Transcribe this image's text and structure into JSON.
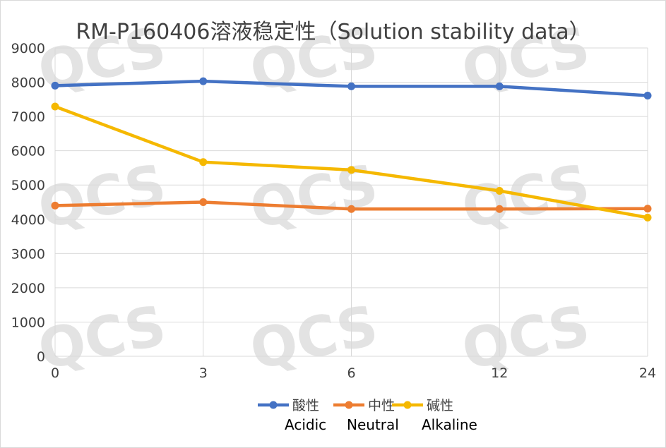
{
  "watermark": "QCS",
  "chart_data": {
    "type": "line",
    "title": "RM-P160406溶液稳定性（Solution stability data）",
    "xlabel": "",
    "ylabel": "",
    "categories": [
      "0",
      "3",
      "6",
      "12",
      "24"
    ],
    "ylim": [
      0,
      9000
    ],
    "yticks": [
      "0",
      "1000",
      "2000",
      "3000",
      "4000",
      "5000",
      "6000",
      "7000",
      "8000",
      "9000"
    ],
    "grid": true,
    "legend_position": "bottom",
    "series": [
      {
        "name": "酸性",
        "subtitle": "Acidic",
        "color": "#4472C4",
        "values": [
          7900,
          8030,
          7880,
          7880,
          7610
        ]
      },
      {
        "name": "中性",
        "subtitle": "Neutral",
        "color": "#ED7D31",
        "values": [
          4400,
          4500,
          4300,
          4300,
          4310
        ]
      },
      {
        "name": "碱性",
        "subtitle": "Alkaline",
        "color": "#F5B800",
        "values": [
          7290,
          5670,
          5440,
          4830,
          4050
        ]
      }
    ]
  }
}
